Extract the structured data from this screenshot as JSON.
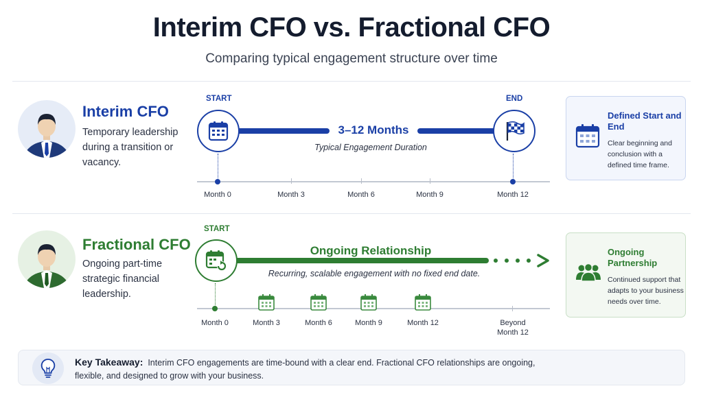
{
  "header": {
    "title": "Interim CFO vs. Fractional CFO",
    "subtitle": "Comparing typical engagement structure over time"
  },
  "colors": {
    "interim": "#1a3fa6",
    "fractional": "#2e7d32",
    "interim_card_bg": "#f3f6fd",
    "fractional_card_bg": "#f3f8f2"
  },
  "interim": {
    "icon": "businessman-avatar-icon",
    "title": "Interim CFO",
    "description": "Temporary leadership during a transition or vacancy.",
    "start_label": "START",
    "end_label": "END",
    "bar_label": "3–12 Months",
    "bar_caption": "Typical Engagement Duration",
    "ticks": [
      "Month 0",
      "Month 3",
      "Month 6",
      "Month 9",
      "Month 12"
    ],
    "card": {
      "icon": "calendar-icon",
      "title": "Defined Start and End",
      "text": "Clear beginning and conclusion with a defined time frame."
    }
  },
  "fractional": {
    "icon": "businessman-avatar-icon",
    "title": "Fractional CFO",
    "description": "Ongoing part-time strategic financial leadership.",
    "start_label": "START",
    "bar_label": "Ongoing Relationship",
    "bar_caption": "Recurring, scalable engagement with no fixed end date.",
    "ticks": [
      "Month 0",
      "Month 3",
      "Month 6",
      "Month 9",
      "Month 12",
      "Beyond Month 12"
    ],
    "card": {
      "icon": "team-icon",
      "title": "Ongoing Partnership",
      "text": "Continued support that adapts to your business needs over time."
    }
  },
  "takeaway": {
    "icon": "lightbulb-icon",
    "label": "Key Takeaway:",
    "text": "Interim CFO engagements are time-bound with a clear end. Fractional CFO relationships are ongoing, flexible, and designed to grow with your business."
  }
}
